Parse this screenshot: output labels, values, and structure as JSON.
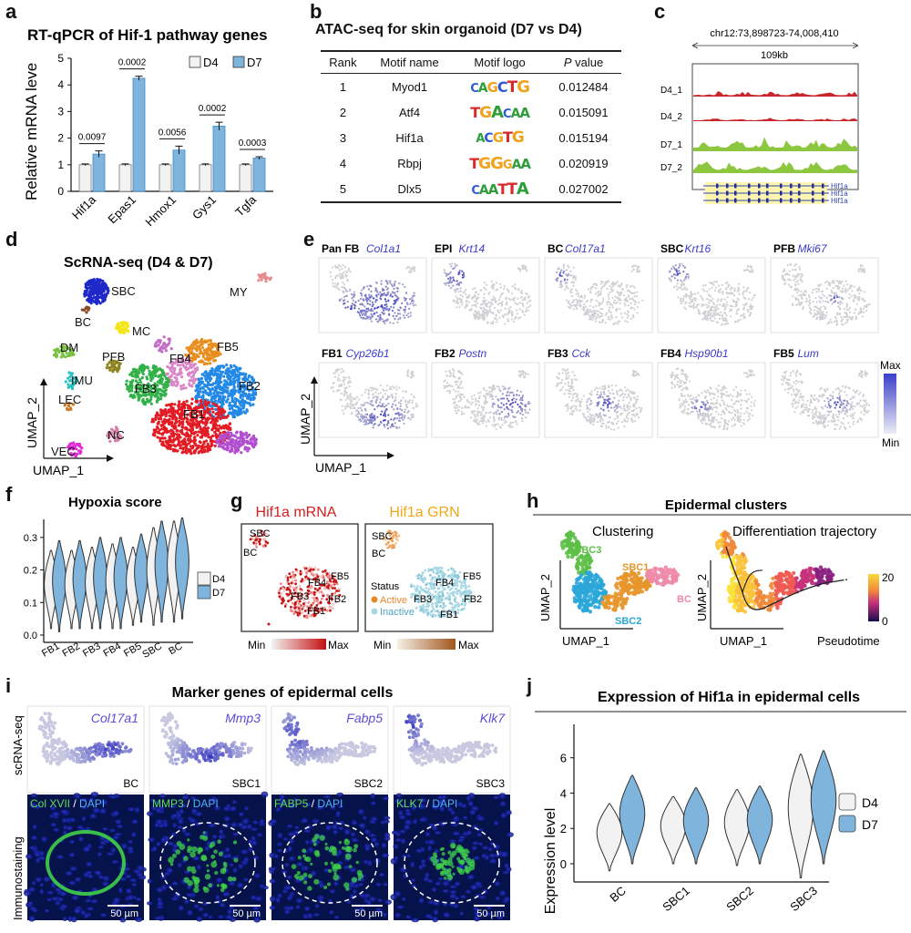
{
  "panels": {
    "a": {
      "letter": "a",
      "title": "RT-qPCR of Hif-1 pathway genes",
      "ylabel": "Relative mRNA leve",
      "legend": [
        "D4",
        "D7"
      ],
      "yticks": [
        "0",
        "1",
        "2",
        "3",
        "4",
        "5"
      ]
    },
    "b": {
      "letter": "b",
      "title": "ATAC-seq for skin organoid (D7 vs D4)",
      "headers": [
        "Rank",
        "Motif name",
        "Motif logo",
        "P value"
      ],
      "rows": [
        {
          "rank": "1",
          "name": "Myod1",
          "logo": "CAGCTG",
          "p": "0.012484"
        },
        {
          "rank": "2",
          "name": "Atf4",
          "logo": "TGACAA",
          "p": "0.015091"
        },
        {
          "rank": "3",
          "name": "Hif1a",
          "logo": "ACGTG",
          "p": "0.015194"
        },
        {
          "rank": "4",
          "name": "Rbpj",
          "logo": "TGGGAA",
          "p": "0.020919"
        },
        {
          "rank": "5",
          "name": "Dlx5",
          "logo": "CAATTA",
          "p": "0.027002"
        }
      ]
    },
    "c": {
      "letter": "c",
      "coord": "chr12:73,898723-74,008,410",
      "span": "109kb",
      "tracks": [
        "D4_1",
        "D4_2",
        "D7_1",
        "D7_2"
      ],
      "genes": [
        "Hif1a",
        "Hif1a",
        "Hif1a"
      ]
    },
    "d": {
      "letter": "d",
      "title": "ScRNA-seq (D4 & D7)",
      "xlabel": "UMAP_1",
      "ylabel": "UMAP_2",
      "clusters": [
        "SBC",
        "MY",
        "BC",
        "MC",
        "DM",
        "PFB",
        "FB5",
        "FB4",
        "IMU",
        "FB3",
        "FB2",
        "LEC",
        "FB1",
        "VEC",
        "NC"
      ]
    },
    "e": {
      "letter": "e",
      "xlabel": "UMAP_1",
      "ylabel": "UMAP_2",
      "scale_max": "Max",
      "scale_min": "Min",
      "maps": [
        {
          "cell": "Pan FB",
          "gene": "Col1a1"
        },
        {
          "cell": "EPI",
          "gene": "Krt14"
        },
        {
          "cell": "BC",
          "gene": "Col17a1"
        },
        {
          "cell": "SBC",
          "gene": "Krt16"
        },
        {
          "cell": "PFB",
          "gene": "Mki67"
        },
        {
          "cell": "FB1",
          "gene": "Cyp26b1"
        },
        {
          "cell": "FB2",
          "gene": "Postn"
        },
        {
          "cell": "FB3",
          "gene": "Cck"
        },
        {
          "cell": "FB4",
          "gene": "Hsp90b1"
        },
        {
          "cell": "FB5",
          "gene": "Lum"
        }
      ]
    },
    "f": {
      "letter": "f",
      "title": "Hypoxia score",
      "legend": [
        "D4",
        "D7"
      ],
      "yticks": [
        "0.0",
        "0.1",
        "0.2",
        "0.3"
      ]
    },
    "g": {
      "letter": "g",
      "left_title": "Hif1a mRNA",
      "right_title": "Hif1a GRN",
      "left_labels": [
        "SBC",
        "BC",
        "FB4",
        "FB5",
        "FB3",
        "FB2",
        "FB1"
      ],
      "right_labels": [
        "SBC",
        "BC",
        "FB4",
        "FB5",
        "FB3",
        "FB2",
        "FB1"
      ],
      "status_title": "Status",
      "status_active": "Active",
      "status_inactive": "Inactive",
      "scale_min": "Min",
      "scale_max": "Max"
    },
    "h": {
      "letter": "h",
      "title": "Epidermal clusters",
      "left_title": "Clustering",
      "right_title": "Differentiation trajectory",
      "clusters": [
        "SBC3",
        "SBC1",
        "SBC2",
        "BC"
      ],
      "xlabel": "UMAP_1",
      "ylabel": "UMAP_2",
      "scale_top": "20",
      "scale_bottom": "0",
      "scale_label": "Pseudotime",
      "start_label": "0"
    },
    "i": {
      "letter": "i",
      "title": "Marker genes of epidermal cells",
      "row1_label": "scRNA-seq",
      "row2_label": "Immunostaining",
      "panels": [
        {
          "gene": "Col17a1",
          "cluster": "BC",
          "stain": "Col XVII",
          "sep": "/",
          "dapi": "DAPI",
          "scale": "50 µm"
        },
        {
          "gene": "Mmp3",
          "cluster": "SBC1",
          "stain": "MMP3",
          "sep": "/",
          "dapi": "DAPI",
          "scale": "50 µm"
        },
        {
          "gene": "Fabp5",
          "cluster": "SBC2",
          "stain": "FABP5",
          "sep": "/",
          "dapi": "DAPI",
          "scale": "50 µm"
        },
        {
          "gene": "Klk7",
          "cluster": "SBC3",
          "stain": "KLK7",
          "sep": "/",
          "dapi": "DAPI",
          "scale": "50 µm"
        }
      ]
    },
    "j": {
      "letter": "j",
      "title": "Expression of Hif1a in epidermal cells",
      "legend": [
        "D4",
        "D7"
      ],
      "yticks": [
        "0",
        "2",
        "4",
        "6"
      ]
    }
  },
  "colors": {
    "d4": "#f2f2f2",
    "d7": "#7fb4dc",
    "d7_dark": "#3b8ccb",
    "atac_d4": "#c9252c",
    "atac_d7": "#8dc63f"
  },
  "chart_data": [
    {
      "panel": "a",
      "type": "bar",
      "title": "RT-qPCR of Hif-1 pathway genes",
      "ylabel": "Relative mRNA leve",
      "ylim": [
        0,
        5
      ],
      "categories": [
        "Hif1a",
        "Epas1",
        "Hmox1",
        "Gys1",
        "Tgfa"
      ],
      "series": [
        {
          "name": "D4",
          "values": [
            1.0,
            1.0,
            1.0,
            1.0,
            1.0
          ],
          "errors": [
            0.03,
            0.03,
            0.03,
            0.03,
            0.03
          ]
        },
        {
          "name": "D7",
          "values": [
            1.4,
            4.25,
            1.55,
            2.45,
            1.25
          ],
          "errors": [
            0.12,
            0.08,
            0.15,
            0.15,
            0.05
          ]
        }
      ],
      "pvalues": [
        "0.0097",
        "0.0002",
        "0.0056",
        "0.0002",
        "0.0003"
      ]
    },
    {
      "panel": "f",
      "type": "violin",
      "title": "Hypoxia score",
      "ylim": [
        0,
        0.35
      ],
      "categories": [
        "FB1",
        "FB2",
        "FB3",
        "FB4",
        "FB5",
        "SBC",
        "BC"
      ],
      "series": [
        {
          "name": "D4",
          "ranges": [
            [
              0.02,
              0.26
            ],
            [
              0.02,
              0.26
            ],
            [
              0.02,
              0.27
            ],
            [
              0.02,
              0.28
            ],
            [
              0.03,
              0.27
            ],
            [
              0.03,
              0.33
            ],
            [
              0.04,
              0.35
            ]
          ]
        },
        {
          "name": "D7",
          "ranges": [
            [
              0.01,
              0.29
            ],
            [
              0.02,
              0.29
            ],
            [
              0.02,
              0.3
            ],
            [
              0.02,
              0.3
            ],
            [
              0.04,
              0.31
            ],
            [
              0.04,
              0.35
            ],
            [
              0.05,
              0.36
            ]
          ]
        }
      ]
    },
    {
      "panel": "j",
      "type": "violin",
      "title": "Expression of Hif1a in epidermal cells",
      "ylabel": "Expression level",
      "ylim": [
        -0.5,
        7
      ],
      "categories": [
        "BC",
        "SBC1",
        "SBC2",
        "SBC3"
      ],
      "series": [
        {
          "name": "D4",
          "ranges": [
            [
              -0.4,
              3.4
            ],
            [
              0,
              3.8
            ],
            [
              -0.1,
              4.2
            ],
            [
              -0.8,
              6.2
            ]
          ]
        },
        {
          "name": "D7",
          "ranges": [
            [
              0,
              5.0
            ],
            [
              0,
              4.3
            ],
            [
              0,
              4.4
            ],
            [
              0,
              6.4
            ]
          ]
        }
      ]
    }
  ]
}
